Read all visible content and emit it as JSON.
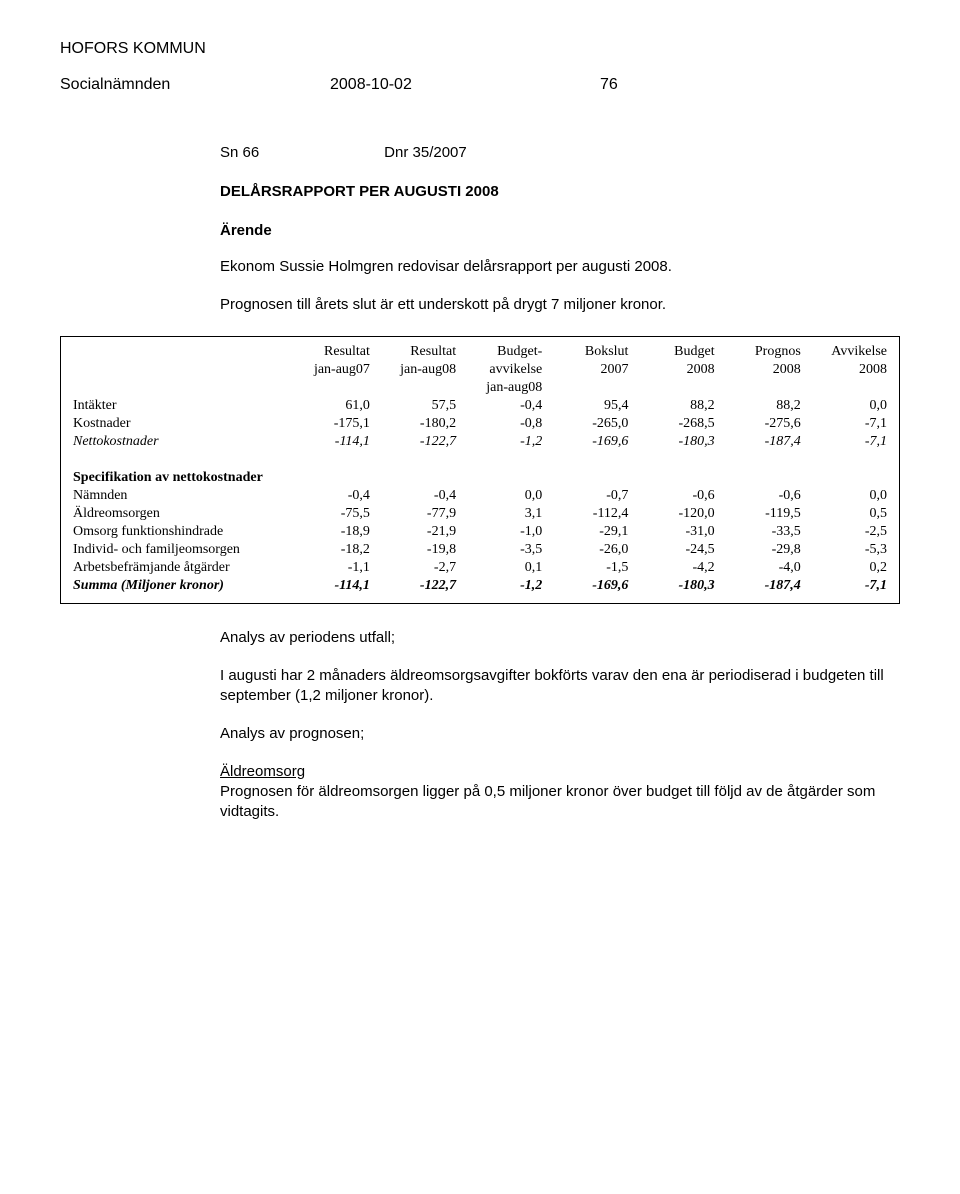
{
  "header": {
    "org": "HOFORS KOMMUN",
    "committee": "Socialnämnden",
    "date": "2008-10-02",
    "page": "76"
  },
  "doc": {
    "sn": "Sn 66",
    "dnr": "Dnr 35/2007",
    "title": "DELÅRSRAPPORT PER AUGUSTI 2008",
    "arende_label": "Ärende",
    "intro1": "Ekonom Sussie Holmgren redovisar delårsrapport per augusti 2008.",
    "intro2": "Prognosen till årets slut är ett underskott på drygt 7 miljoner kronor.",
    "analysis_title": "Analys av periodens utfall;",
    "analysis_p1": "I augusti har 2 månaders äldreomsorgsavgifter bokförts varav den ena är periodiserad i budgeten till september (1,2 miljoner kronor).",
    "prognos_title": "Analys av prognosen;",
    "aldre_label": "Äldreomsorg",
    "aldre_text": "Prognosen för äldreomsorgen ligger på 0,5 miljoner kronor över budget till följd av de åtgärder som vidtagits."
  },
  "table": {
    "hdr1": [
      "",
      "Resultat",
      "Resultat",
      "Budget-",
      "Bokslut",
      "Budget",
      "Prognos",
      "Avvikelse"
    ],
    "hdr2": [
      "",
      "jan-aug07",
      "jan-aug08",
      "avvikelse",
      "2007",
      "2008",
      "2008",
      "2008"
    ],
    "hdr3": [
      "",
      "",
      "",
      "jan-aug08",
      "",
      "",
      "",
      ""
    ],
    "rows_top": [
      {
        "label": "Intäkter",
        "vals": [
          "61,0",
          "57,5",
          "-0,4",
          "95,4",
          "88,2",
          "88,2",
          "0,0"
        ],
        "style": ""
      },
      {
        "label": "Kostnader",
        "vals": [
          "-175,1",
          "-180,2",
          "-0,8",
          "-265,0",
          "-268,5",
          "-275,6",
          "-7,1"
        ],
        "style": ""
      },
      {
        "label": "Nettokostnader",
        "vals": [
          "-114,1",
          "-122,7",
          "-1,2",
          "-169,6",
          "-180,3",
          "-187,4",
          "-7,1"
        ],
        "style": "italic"
      }
    ],
    "spec_title": "Specifikation av nettokostnader",
    "rows_spec": [
      {
        "label": "Nämnden",
        "vals": [
          "-0,4",
          "-0,4",
          "0,0",
          "-0,7",
          "-0,6",
          "-0,6",
          "0,0"
        ],
        "style": ""
      },
      {
        "label": "Äldreomsorgen",
        "vals": [
          "-75,5",
          "-77,9",
          "3,1",
          "-112,4",
          "-120,0",
          "-119,5",
          "0,5"
        ],
        "style": ""
      },
      {
        "label": "Omsorg funktionshindrade",
        "vals": [
          "-18,9",
          "-21,9",
          "-1,0",
          "-29,1",
          "-31,0",
          "-33,5",
          "-2,5"
        ],
        "style": ""
      },
      {
        "label": "Individ- och familjeomsorgen",
        "vals": [
          "-18,2",
          "-19,8",
          "-3,5",
          "-26,0",
          "-24,5",
          "-29,8",
          "-5,3"
        ],
        "style": ""
      },
      {
        "label": "Arbetsbefrämjande åtgärder",
        "vals": [
          "-1,1",
          "-2,7",
          "0,1",
          "-1,5",
          "-4,2",
          "-4,0",
          "0,2"
        ],
        "style": ""
      },
      {
        "label": "Summa (Miljoner kronor)",
        "vals": [
          "-114,1",
          "-122,7",
          "-1,2",
          "-169,6",
          "-180,3",
          "-187,4",
          "-7,1"
        ],
        "style": "italic bold"
      }
    ],
    "col_widths": [
      "190",
      "70",
      "70",
      "70",
      "70",
      "70",
      "70",
      "70"
    ]
  }
}
